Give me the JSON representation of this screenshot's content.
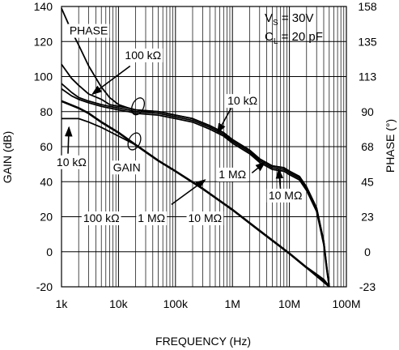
{
  "chart_data": {
    "type": "line",
    "x_scale": "log",
    "xlabel": "FREQUENCY (Hz)",
    "ylabel_left": "GAIN (dB)",
    "ylabel_right": "PHASE (°)",
    "xlim": [
      1000,
      100000000
    ],
    "ylim_left": [
      -20,
      140
    ],
    "ylim_right": [
      -23,
      158
    ],
    "x_ticks": [
      {
        "value": 1000,
        "label": "1k"
      },
      {
        "value": 10000,
        "label": "10k"
      },
      {
        "value": 100000,
        "label": "100k"
      },
      {
        "value": 1000000,
        "label": "1M"
      },
      {
        "value": 10000000,
        "label": "10M"
      },
      {
        "value": 100000000,
        "label": "100M"
      }
    ],
    "y_ticks_left": [
      {
        "value": -20,
        "label": "-20"
      },
      {
        "value": 0,
        "label": "0"
      },
      {
        "value": 20,
        "label": "20"
      },
      {
        "value": 40,
        "label": "40"
      },
      {
        "value": 60,
        "label": "60"
      },
      {
        "value": 80,
        "label": "80"
      },
      {
        "value": 100,
        "label": "100"
      },
      {
        "value": 120,
        "label": "120"
      },
      {
        "value": 140,
        "label": "140"
      }
    ],
    "y_ticks_right": [
      {
        "value": -20,
        "label": "-23"
      },
      {
        "value": 0,
        "label": "0"
      },
      {
        "value": 20,
        "label": "23"
      },
      {
        "value": 40,
        "label": "45"
      },
      {
        "value": 60,
        "label": "68"
      },
      {
        "value": 80,
        "label": "90"
      },
      {
        "value": 100,
        "label": "113"
      },
      {
        "value": 120,
        "label": "135"
      },
      {
        "value": 140,
        "label": "158"
      }
    ],
    "grid": true,
    "conditions": {
      "line1_main": "V",
      "line1_sub": "S",
      "line1_rest": " = 30V",
      "line2_main": "C",
      "line2_sub": "L",
      "line2_rest": " = 20 pF"
    },
    "series": [
      {
        "group": "gain",
        "values": [
          [
            1000,
            86
          ],
          [
            2000,
            82
          ],
          [
            3000,
            79
          ],
          [
            5000,
            74
          ],
          [
            10000,
            68
          ],
          [
            20000,
            61
          ],
          [
            50000,
            52
          ],
          [
            100000,
            46
          ],
          [
            300000,
            36
          ],
          [
            1000000,
            24
          ],
          [
            3000000,
            12
          ],
          [
            10000000,
            -1
          ],
          [
            20000000,
            -9
          ],
          [
            30000000,
            -13
          ],
          [
            40000000,
            -16
          ],
          [
            50000000,
            -20
          ]
        ]
      },
      {
        "group": "gain",
        "values": [
          [
            1000,
            76
          ],
          [
            2000,
            76
          ],
          [
            3000,
            74
          ],
          [
            5000,
            71
          ],
          [
            10000,
            66
          ],
          [
            20000,
            61
          ],
          [
            50000,
            52
          ],
          [
            100000,
            46
          ],
          [
            300000,
            36
          ],
          [
            1000000,
            24
          ],
          [
            3000000,
            12
          ],
          [
            10000000,
            -1
          ],
          [
            50000000,
            -20
          ]
        ]
      },
      {
        "group": "phase",
        "values": [
          [
            1000,
            139
          ],
          [
            1500,
            126
          ],
          [
            2000,
            118
          ],
          [
            3000,
            106
          ],
          [
            5000,
            94
          ],
          [
            7000,
            88
          ],
          [
            10000,
            84
          ],
          [
            15000,
            82
          ],
          [
            20000,
            81
          ],
          [
            50000,
            80
          ],
          [
            100000,
            78
          ],
          [
            200000,
            76
          ],
          [
            400000,
            72
          ],
          [
            700000,
            68
          ],
          [
            1000000,
            64
          ],
          [
            2000000,
            58
          ],
          [
            3000000,
            53
          ],
          [
            5000000,
            49
          ],
          [
            8000000,
            48
          ],
          [
            10000000,
            46
          ],
          [
            15000000,
            43
          ],
          [
            20000000,
            37
          ],
          [
            30000000,
            25
          ],
          [
            40000000,
            6
          ],
          [
            45000000,
            -8
          ],
          [
            50000000,
            -20
          ]
        ]
      },
      {
        "group": "phase",
        "values": [
          [
            1000,
            107
          ],
          [
            1500,
            99
          ],
          [
            2000,
            95
          ],
          [
            3000,
            90
          ],
          [
            5000,
            87
          ],
          [
            7000,
            84
          ],
          [
            10000,
            83
          ],
          [
            15000,
            82
          ],
          [
            20000,
            81
          ],
          [
            50000,
            80
          ],
          [
            100000,
            78
          ],
          [
            200000,
            76
          ],
          [
            400000,
            72
          ],
          [
            700000,
            68
          ],
          [
            1000000,
            64
          ],
          [
            2000000,
            58
          ],
          [
            3000000,
            53
          ],
          [
            5000000,
            49
          ],
          [
            8000000,
            48
          ],
          [
            10000000,
            46
          ],
          [
            15000000,
            43
          ],
          [
            20000000,
            37
          ],
          [
            30000000,
            25
          ],
          [
            40000000,
            6
          ],
          [
            45000000,
            -8
          ],
          [
            50000000,
            -20
          ]
        ]
      },
      {
        "group": "phase",
        "values": [
          [
            1000,
            96
          ],
          [
            1500,
            91
          ],
          [
            2000,
            88
          ],
          [
            3000,
            86
          ],
          [
            5000,
            84
          ],
          [
            7000,
            83
          ],
          [
            10000,
            82
          ],
          [
            15000,
            81
          ],
          [
            20000,
            80
          ],
          [
            50000,
            79
          ],
          [
            100000,
            77
          ],
          [
            200000,
            75
          ],
          [
            400000,
            71
          ],
          [
            700000,
            67
          ],
          [
            1000000,
            63
          ],
          [
            2000000,
            57
          ],
          [
            3000000,
            52
          ],
          [
            5000000,
            48
          ],
          [
            8000000,
            47
          ],
          [
            10000000,
            45
          ],
          [
            15000000,
            42
          ],
          [
            20000000,
            36
          ],
          [
            30000000,
            24
          ],
          [
            40000000,
            5
          ],
          [
            45000000,
            -9
          ],
          [
            50000000,
            -20
          ]
        ]
      },
      {
        "group": "phase",
        "values": [
          [
            1000,
            93
          ],
          [
            1500,
            89
          ],
          [
            2000,
            87
          ],
          [
            3000,
            85
          ],
          [
            5000,
            83
          ],
          [
            7000,
            82
          ],
          [
            10000,
            81
          ],
          [
            15000,
            80
          ],
          [
            20000,
            79
          ],
          [
            50000,
            78
          ],
          [
            100000,
            76
          ],
          [
            200000,
            74
          ],
          [
            400000,
            70
          ],
          [
            700000,
            66
          ],
          [
            1000000,
            62
          ],
          [
            2000000,
            56
          ],
          [
            3000000,
            51
          ],
          [
            5000000,
            47
          ],
          [
            8000000,
            46
          ],
          [
            10000000,
            44
          ],
          [
            15000000,
            41
          ],
          [
            20000000,
            35
          ],
          [
            30000000,
            23
          ],
          [
            40000000,
            4
          ],
          [
            45000000,
            -10
          ],
          [
            50000000,
            -20
          ]
        ]
      }
    ],
    "annotations": [
      {
        "id": "phase",
        "text": "PHASE",
        "x": 3000,
        "y": 124,
        "anchor": "middle"
      },
      {
        "id": "gain",
        "text": "GAIN",
        "x": 14000,
        "y": 46,
        "anchor": "middle"
      },
      {
        "id": "phase-100k",
        "text": "100 kΩ",
        "x": 27000,
        "y": 110,
        "anchor": "middle"
      },
      {
        "id": "phase-10k",
        "text": "10 kΩ",
        "x": 1500000,
        "y": 84,
        "anchor": "middle"
      },
      {
        "id": "phase-1m",
        "text": "1 MΩ",
        "x": 1000000,
        "y": 42,
        "anchor": "middle"
      },
      {
        "id": "phase-10m",
        "text": "10 MΩ",
        "x": 8500000,
        "y": 30,
        "anchor": "middle"
      },
      {
        "id": "gain-10k",
        "text": "10 kΩ",
        "x": 1500,
        "y": 49,
        "anchor": "middle"
      },
      {
        "id": "gain-100k",
        "text": "100 kΩ",
        "x": 5000,
        "y": 17,
        "anchor": "middle"
      },
      {
        "id": "gain-1m",
        "text": "1 MΩ",
        "x": 38000,
        "y": 17,
        "anchor": "middle"
      },
      {
        "id": "gain-10m",
        "text": "10 MΩ",
        "x": 330000,
        "y": 17,
        "anchor": "middle"
      }
    ],
    "arrows": [
      {
        "id": "arrow-phase-100k",
        "from": [
          16000,
          106
        ],
        "to": [
          3500,
          90
        ]
      },
      {
        "id": "arrow-phase-10k",
        "from": [
          950000,
          82
        ],
        "to": [
          550000,
          68
        ]
      },
      {
        "id": "arrow-phase-1m",
        "from": [
          2200000,
          45
        ],
        "to": [
          3700000,
          51
        ]
      },
      {
        "id": "arrow-phase-10m",
        "from": [
          7000000,
          35
        ],
        "to": [
          6500000,
          47
        ]
      },
      {
        "id": "arrow-gain-10k",
        "from": [
          1400000,
          0
        ],
        "to": [
          1400000,
          0
        ]
      },
      {
        "id": "arrow-gain-10k-b",
        "from": [
          1300,
          56
        ],
        "to": [
          1350,
          71
        ]
      },
      {
        "id": "arrow-gain-10m",
        "from": [
          85000,
          27
        ],
        "to": [
          330000,
          41
        ]
      }
    ],
    "ellipses": [
      {
        "id": "phase-ellipse",
        "x": 22000,
        "y": 83
      },
      {
        "id": "gain-ellipse",
        "x": 19000,
        "y": 63
      }
    ]
  }
}
